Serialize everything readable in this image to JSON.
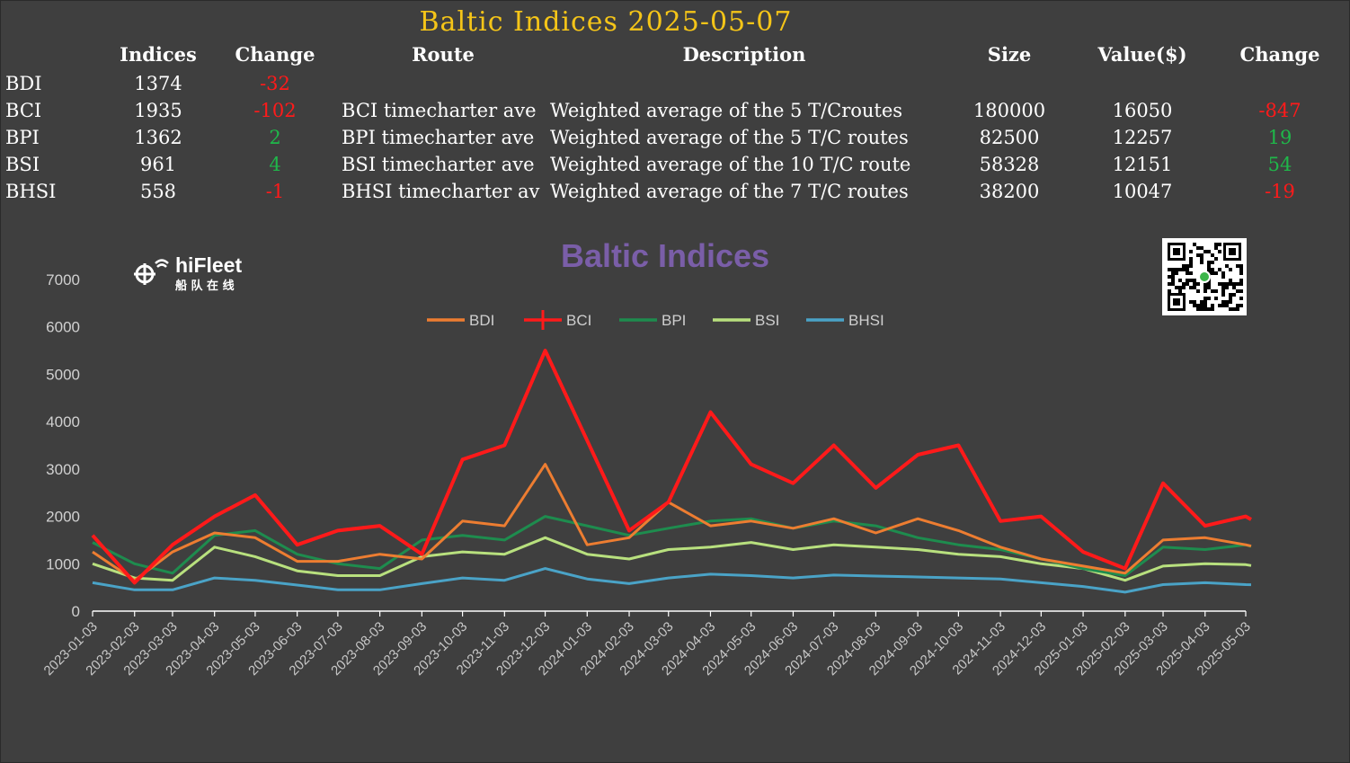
{
  "title": "Baltic Indices 2025-05-07",
  "table": {
    "headers": [
      "Indices",
      "Change",
      "Route",
      "Description",
      "Size",
      "Value($)",
      "Change"
    ],
    "rows": [
      {
        "name": "BDI",
        "index": "1374",
        "change": "-32",
        "route": "",
        "description": "",
        "size": "",
        "value": "",
        "vchange": ""
      },
      {
        "name": "BCI",
        "index": "1935",
        "change": "-102",
        "route": "BCI timecharter ave",
        "description": "Weighted average of the 5 T/Croutes",
        "size": "180000",
        "value": "16050",
        "vchange": "-847"
      },
      {
        "name": "BPI",
        "index": "1362",
        "change": "2",
        "route": "BPI timecharter ave",
        "description": "Weighted average of the 5 T/C routes",
        "size": "82500",
        "value": "12257",
        "vchange": "19"
      },
      {
        "name": "BSI",
        "index": "961",
        "change": "4",
        "route": "BSI timecharter ave",
        "description": "Weighted average of the 10 T/C route",
        "size": "58328",
        "value": "12151",
        "vchange": "54"
      },
      {
        "name": "BHSI",
        "index": "558",
        "change": "-1",
        "route": "BHSI timecharter av",
        "description": "Weighted average of the 7 T/C routes",
        "size": "38200",
        "value": "10047",
        "vchange": "-19"
      }
    ]
  },
  "logo": {
    "name": "hiFleet",
    "subtitle": "船 队 在 线"
  },
  "colors": {
    "positive": "#1fb84a",
    "negative": "#ff1a1a",
    "title": "#f5c518",
    "chart_title": "#7a5ea8"
  },
  "chart_data": {
    "type": "line",
    "title": "Baltic Indices",
    "ylim": [
      0,
      7000
    ],
    "yticks": [
      0,
      1000,
      2000,
      3000,
      4000,
      5000,
      6000,
      7000
    ],
    "legend_position": "top",
    "grid": false,
    "x_ticks": [
      "2023-01-03",
      "2023-02-03",
      "2023-03-03",
      "2023-04-03",
      "2023-05-03",
      "2023-06-03",
      "2023-07-03",
      "2023-08-03",
      "2023-09-03",
      "2023-10-03",
      "2023-11-03",
      "2023-12-03",
      "2024-01-03",
      "2024-02-03",
      "2024-03-03",
      "2024-04-03",
      "2024-05-03",
      "2024-06-03",
      "2024-07-03",
      "2024-08-03",
      "2024-09-03",
      "2024-10-03",
      "2024-11-03",
      "2024-12-03",
      "2025-01-03",
      "2025-02-03",
      "2025-03-03",
      "2025-04-03",
      "2025-05-03"
    ],
    "x": [
      "2023-01-03",
      "2023-02-03",
      "2023-03-03",
      "2023-04-03",
      "2023-05-03",
      "2023-06-03",
      "2023-07-03",
      "2023-08-03",
      "2023-09-03",
      "2023-10-03",
      "2023-11-03",
      "2023-12-03",
      "2024-01-03",
      "2024-02-03",
      "2024-03-03",
      "2024-04-03",
      "2024-05-03",
      "2024-06-03",
      "2024-07-03",
      "2024-08-03",
      "2024-09-03",
      "2024-10-03",
      "2024-11-03",
      "2024-12-03",
      "2025-01-03",
      "2025-02-03",
      "2025-03-03",
      "2025-04-03",
      "2025-05-03",
      "2025-05-07"
    ],
    "series": [
      {
        "name": "BDI",
        "color": "#ed7d31",
        "width": 3,
        "values": [
          1250,
          650,
          1250,
          1650,
          1550,
          1050,
          1050,
          1200,
          1100,
          1900,
          1800,
          3100,
          1400,
          1550,
          2300,
          1800,
          1900,
          1750,
          1950,
          1650,
          1950,
          1700,
          1350,
          1100,
          950,
          800,
          1500,
          1550,
          1400,
          1374
        ]
      },
      {
        "name": "BCI",
        "color": "#ff1a1a",
        "width": 4,
        "values": [
          1600,
          600,
          1400,
          2000,
          2450,
          1400,
          1700,
          1800,
          1200,
          3200,
          3500,
          5500,
          3600,
          1700,
          2300,
          4200,
          3100,
          2700,
          3500,
          2600,
          3300,
          3500,
          1900,
          2000,
          1250,
          900,
          2700,
          1800,
          2000,
          1935
        ]
      },
      {
        "name": "BPI",
        "color": "#1e8c4e",
        "width": 3,
        "values": [
          1450,
          1000,
          800,
          1600,
          1700,
          1200,
          1000,
          900,
          1500,
          1600,
          1500,
          2000,
          1800,
          1600,
          1750,
          1900,
          1950,
          1750,
          1900,
          1800,
          1550,
          1400,
          1300,
          1100,
          900,
          750,
          1350,
          1300,
          1400,
          1362
        ]
      },
      {
        "name": "BSI",
        "color": "#b8e07e",
        "width": 3,
        "values": [
          1000,
          700,
          650,
          1350,
          1150,
          850,
          750,
          750,
          1150,
          1250,
          1200,
          1550,
          1200,
          1100,
          1300,
          1350,
          1450,
          1300,
          1400,
          1350,
          1300,
          1200,
          1150,
          1000,
          900,
          650,
          950,
          1000,
          980,
          961
        ]
      },
      {
        "name": "BHSI",
        "color": "#4aa3c7",
        "width": 3,
        "values": [
          600,
          450,
          450,
          700,
          650,
          550,
          450,
          450,
          580,
          700,
          650,
          900,
          680,
          580,
          700,
          780,
          750,
          700,
          760,
          740,
          720,
          700,
          680,
          600,
          520,
          400,
          560,
          600,
          560,
          558
        ]
      }
    ]
  }
}
